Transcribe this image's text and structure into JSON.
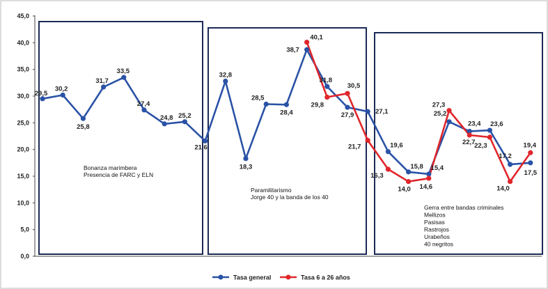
{
  "chart_data": {
    "type": "line",
    "ylim": [
      0,
      45
    ],
    "yticks": [
      "0,0",
      "5,0",
      "10,0",
      "15,0",
      "20,0",
      "25,0",
      "30,0",
      "35,0",
      "40,0",
      "45,0"
    ],
    "grid": false,
    "legend_position": "bottom",
    "series": [
      {
        "name": "Tasa general",
        "color": "#2a52a6",
        "values": [
          29.5,
          30.2,
          25.8,
          31.7,
          33.5,
          27.4,
          24.8,
          25.2,
          21.6,
          32.8,
          18.3,
          28.5,
          28.4,
          38.7,
          31.8,
          27.9,
          27.1,
          19.6,
          15.8,
          15.4,
          25.2,
          23.4,
          23.6,
          17.2,
          17.5
        ],
        "labels": [
          "29,5",
          "30,2",
          "25,8",
          "31,7",
          "33,5",
          "27,4",
          "24,8",
          "25,2",
          "21,6",
          "32,8",
          "18,3",
          "28,5",
          "28,4",
          "38,7",
          "31,8",
          "27,9",
          "27,1",
          "19,6",
          "15,8",
          "15,4",
          "25,2",
          "23,4",
          "23,6",
          "17,2",
          "17,5"
        ]
      },
      {
        "name": "Tasa 6 a 26 años",
        "color": "#e0262b",
        "start_index": 13,
        "values": [
          40.1,
          29.8,
          30.5,
          21.7,
          16.3,
          14.0,
          14.6,
          27.3,
          22.7,
          22.3,
          14.0,
          19.4
        ],
        "labels": [
          "40,1",
          "29,8",
          "30,5",
          "21,7",
          "16,3",
          "14,0",
          "14,6",
          "27,3",
          "22,7",
          "22,3",
          "14,0",
          "19,4"
        ]
      }
    ],
    "annotations": [
      {
        "id": "bonanza",
        "lines": [
          "Bonanza marimbera",
          "Presencia de FARC y ELN"
        ]
      },
      {
        "id": "paramil",
        "lines": [
          "Paramilitarismo",
          "Jorge 40 y la banda de los 40"
        ]
      },
      {
        "id": "bandas",
        "lines": [
          "Gerra entre bandas criminales",
          "Mellizos",
          "Pasisas",
          "Rastrojos",
          "Urabeños",
          "40 negritos"
        ]
      }
    ]
  }
}
